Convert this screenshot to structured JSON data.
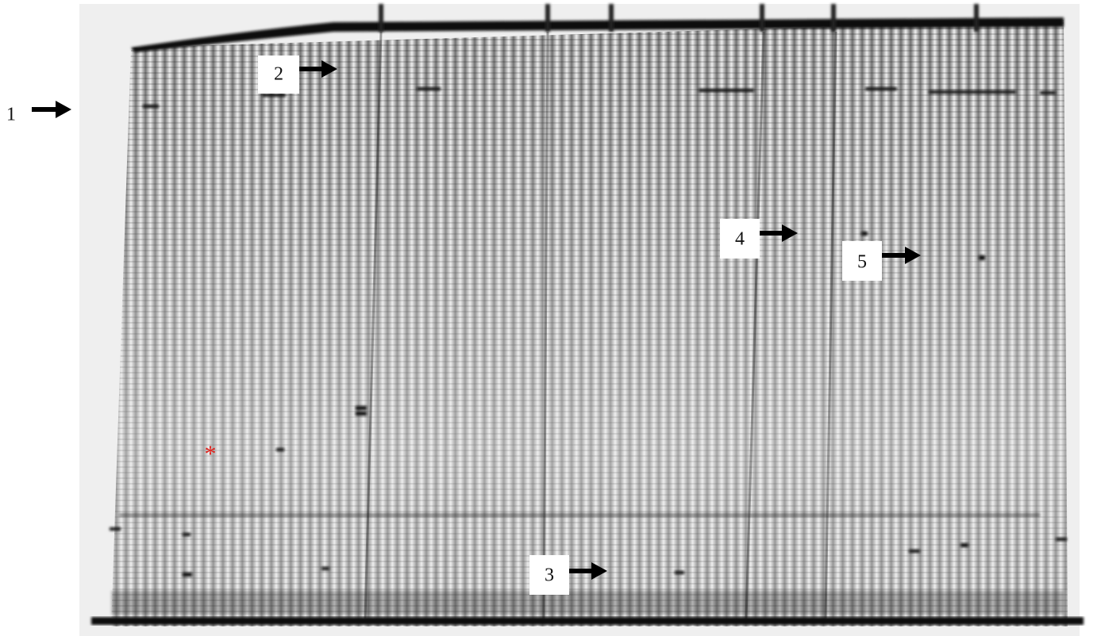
{
  "labels": [
    "1",
    "2",
    "3",
    "4",
    "5"
  ],
  "marker": "*"
}
